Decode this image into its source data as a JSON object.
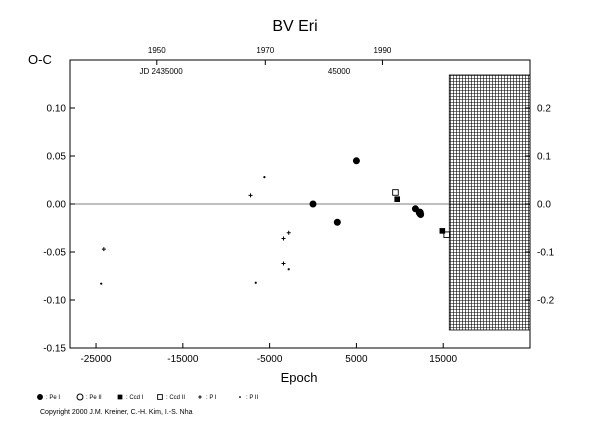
{
  "chart_data": {
    "type": "scatter",
    "title": "BV  Eri",
    "ylabel": "O-C",
    "xlabel": "Epoch",
    "xlim": [
      -28000,
      25000
    ],
    "ylim": [
      -0.15,
      0.15
    ],
    "right_ylim": [
      -0.3,
      0.3
    ],
    "x_ticks": [
      -25000,
      -15000,
      -5000,
      5000,
      15000
    ],
    "x_tick_labels": [
      "-25000",
      "-15000",
      "-5000",
      "5000",
      "15000"
    ],
    "y_ticks": [
      -0.15,
      -0.1,
      -0.05,
      0.0,
      0.05,
      0.1
    ],
    "y_tick_labels": [
      "-0.15",
      "-0.10",
      "-0.05",
      "0.00",
      "0.05",
      "0.10"
    ],
    "right_ticks": [
      -0.2,
      -0.1,
      0.0,
      0.1,
      0.2
    ],
    "right_tick_labels": [
      "-0.2",
      "-0.1",
      "0.0",
      "0.1",
      "0.2"
    ],
    "top_years": [
      {
        "label": "1950",
        "epoch": -18000
      },
      {
        "label": "1970",
        "epoch": -5500
      },
      {
        "label": "1990",
        "epoch": 8000
      }
    ],
    "top_annotations": [
      {
        "text": "JD 2435000",
        "epoch": -17500
      },
      {
        "text": "45000",
        "epoch": 3000
      }
    ],
    "zero_line": 0,
    "hatched_region_start": 15700,
    "series": [
      {
        "marker": "filled-circle",
        "points": [
          [
            0,
            0.0
          ],
          [
            2800,
            -0.019
          ],
          [
            5000,
            0.045
          ],
          [
            11800,
            -0.005
          ],
          [
            12300,
            -0.009
          ],
          [
            12400,
            -0.011
          ]
        ]
      },
      {
        "marker": "open-circle",
        "points": [
          [
            12300,
            -0.009
          ]
        ]
      },
      {
        "marker": "filled-square",
        "points": [
          [
            9700,
            0.005
          ],
          [
            14900,
            -0.028
          ]
        ]
      },
      {
        "marker": "open-square",
        "points": [
          [
            9500,
            0.012
          ],
          [
            15400,
            -0.032
          ]
        ]
      },
      {
        "marker": "plus",
        "points": [
          [
            -24100,
            -0.047
          ],
          [
            -7200,
            0.009
          ],
          [
            -3400,
            -0.036
          ],
          [
            -2800,
            -0.03
          ],
          [
            -3400,
            -0.062
          ]
        ]
      },
      {
        "marker": "dot",
        "points": [
          [
            -24400,
            -0.083
          ],
          [
            -5600,
            0.028
          ],
          [
            -6600,
            -0.082
          ],
          [
            -2800,
            -0.068
          ]
        ]
      }
    ],
    "legend": [
      {
        "marker": "filled-circle",
        "label": ": Pe I"
      },
      {
        "marker": "open-circle",
        "label": ": Pe II"
      },
      {
        "marker": "filled-square",
        "label": ": Ccd I"
      },
      {
        "marker": "open-square",
        "label": ": Ccd II"
      },
      {
        "marker": "plus",
        "label": ": P I"
      },
      {
        "marker": "dot",
        "label": ": P II"
      }
    ],
    "copyright": "Copyright 2000 J.M. Kreiner, C.-H. Kim, I.-S. Nha"
  }
}
